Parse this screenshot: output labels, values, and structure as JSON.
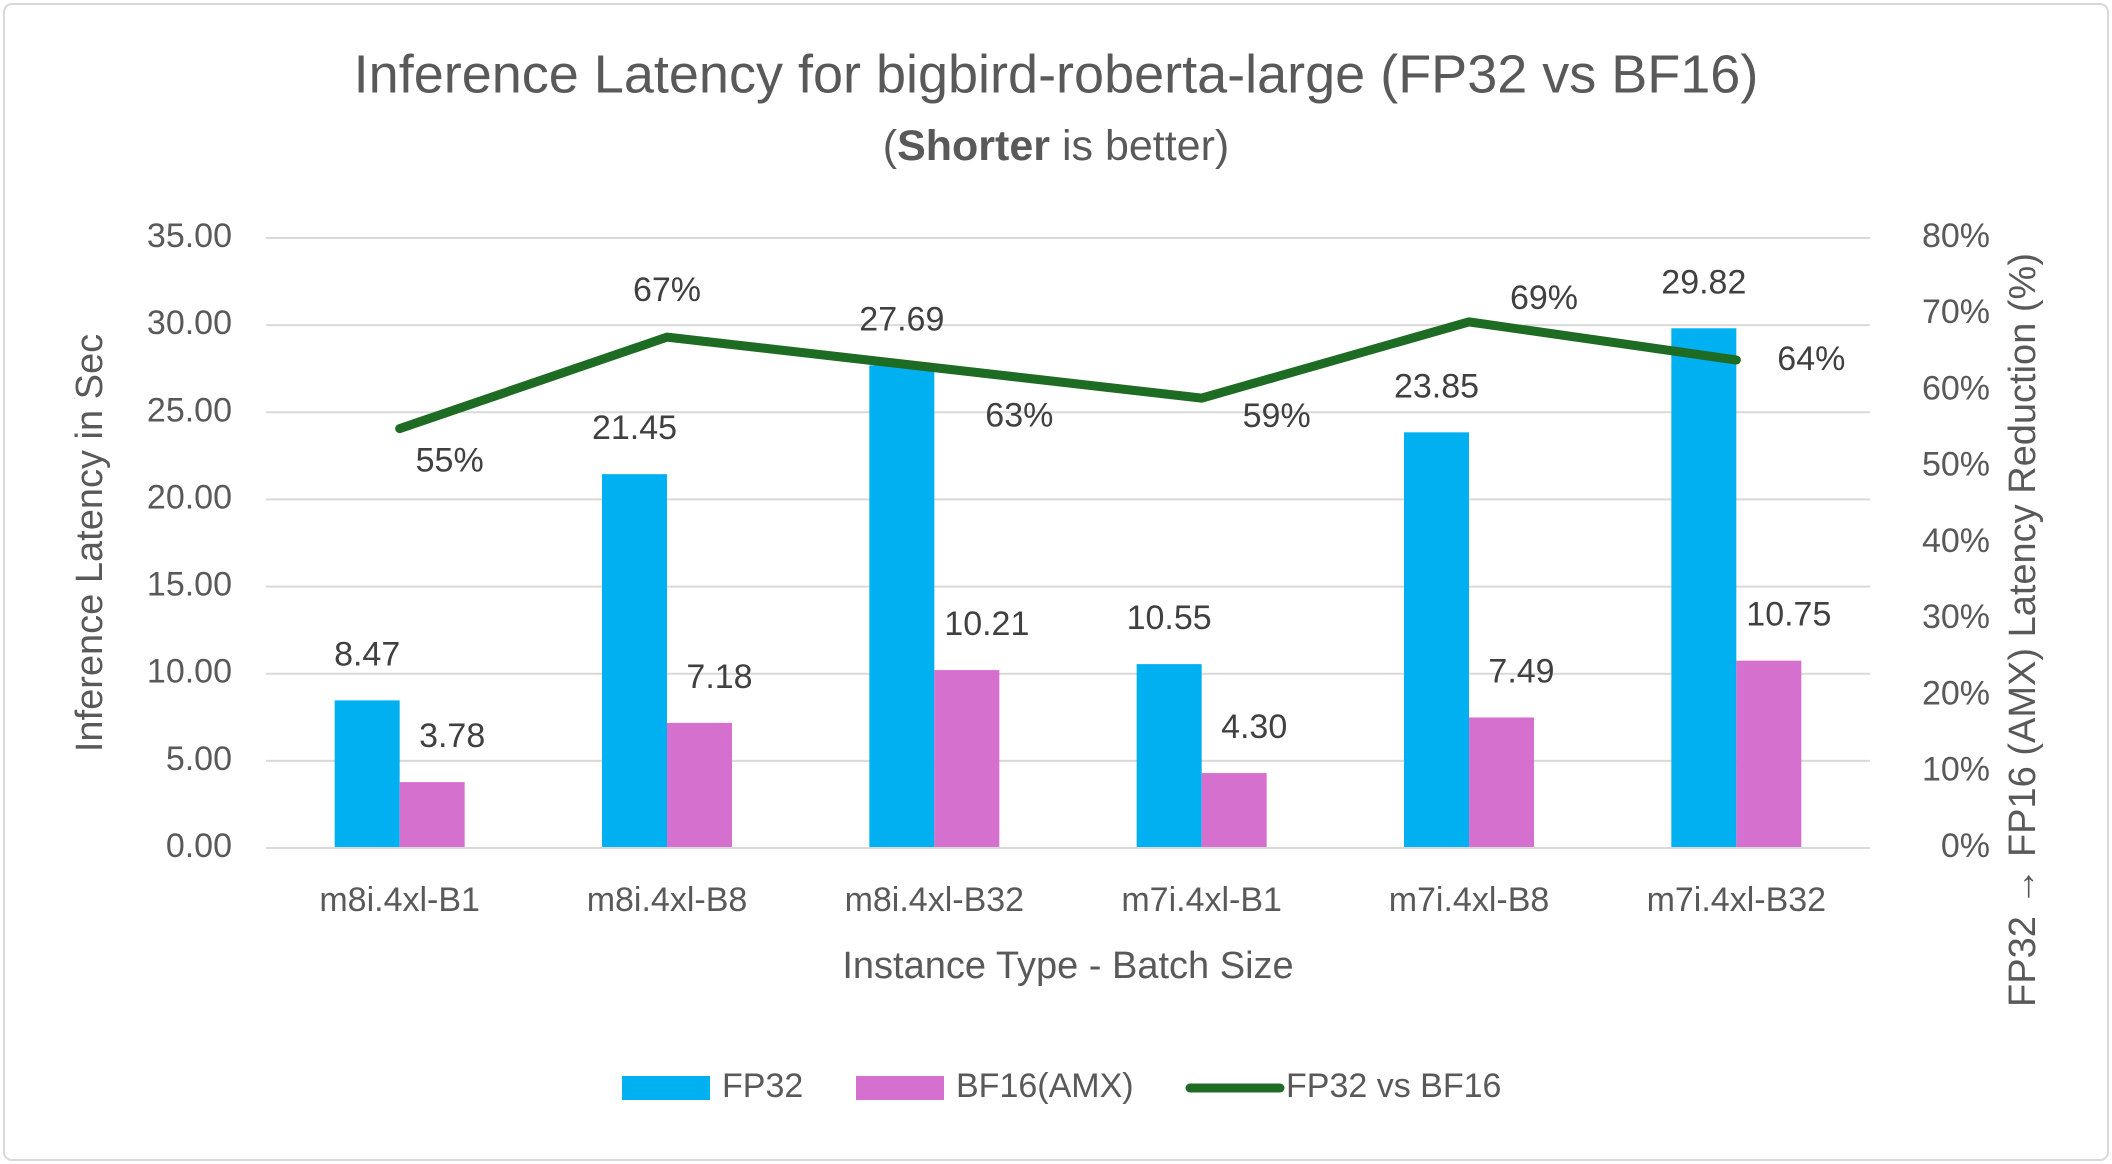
{
  "chart_data": {
    "type": "bar",
    "title": "Inference Latency for bigbird-roberta-large (FP32 vs BF16)",
    "subtitle_parts": [
      "(",
      "Shorter",
      " is better)"
    ],
    "x_label": "Instance Type - Batch Size",
    "y_label": "Inference Latency in Sec",
    "y2_label": "FP32 → FP16 (AMX) Latency Reduction (%)",
    "categories": [
      "m8i.4xl-B1",
      "m8i.4xl-B8",
      "m8i.4xl-B32",
      "m7i.4xl-B1",
      "m7i.4xl-B8",
      "m7i.4xl-B32"
    ],
    "series": [
      {
        "name": "FP32",
        "type": "bar",
        "color": "#00b0f0",
        "values": [
          8.47,
          21.45,
          27.69,
          10.55,
          23.85,
          29.82
        ]
      },
      {
        "name": "BF16(AMX)",
        "type": "bar",
        "color": "#d670cf",
        "values": [
          3.78,
          7.18,
          10.21,
          4.3,
          7.49,
          10.75
        ],
        "value_labels": [
          "3.78",
          "7.18",
          "10.21",
          "4.30",
          "7.49",
          "10.75"
        ]
      },
      {
        "name": "FP32 vs BF16",
        "type": "line",
        "axis": "y2",
        "color": "#1e6b24",
        "values": [
          55,
          67,
          63,
          59,
          69,
          64
        ],
        "value_labels": [
          "55%",
          "67%",
          "63%",
          "59%",
          "69%",
          "64%"
        ]
      }
    ],
    "ylim": [
      0,
      35
    ],
    "yticks": [
      {
        "value": 0,
        "label": "0.00"
      },
      {
        "value": 5,
        "label": "5.00"
      },
      {
        "value": 10,
        "label": "10.00"
      },
      {
        "value": 15,
        "label": "15.00"
      },
      {
        "value": 20,
        "label": "20.00"
      },
      {
        "value": 25,
        "label": "25.00"
      },
      {
        "value": 30,
        "label": "30.00"
      },
      {
        "value": 35,
        "label": "35.00"
      }
    ],
    "y2lim": [
      0,
      80
    ],
    "y2ticks": [
      {
        "value": 0,
        "label": "0%"
      },
      {
        "value": 10,
        "label": "10%"
      },
      {
        "value": 20,
        "label": "20%"
      },
      {
        "value": 30,
        "label": "30%"
      },
      {
        "value": 40,
        "label": "40%"
      },
      {
        "value": 50,
        "label": "50%"
      },
      {
        "value": 60,
        "label": "60%"
      },
      {
        "value": 70,
        "label": "70%"
      },
      {
        "value": 80,
        "label": "80%"
      }
    ],
    "grid": true,
    "legend": "bottom"
  }
}
